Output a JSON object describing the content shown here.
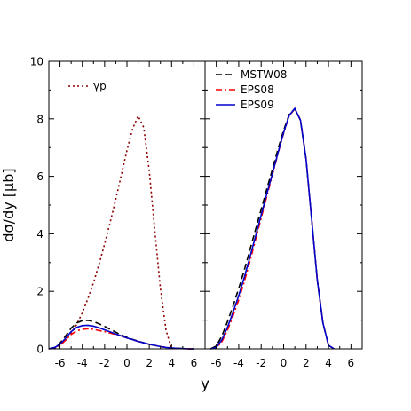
{
  "figure": {
    "ylabel": "dσ/dy [μb]",
    "xlabel": "y",
    "ylim": [
      0,
      10
    ],
    "xlim": [
      -7,
      7
    ],
    "yticks": [
      0,
      2,
      4,
      6,
      8,
      10
    ],
    "xticks": [
      -6,
      -4,
      -2,
      0,
      2,
      4,
      6
    ],
    "grid": false
  },
  "chart_data": [
    {
      "type": "line",
      "panel": "left",
      "legend_position": "top-left",
      "series": [
        {
          "name": "γp",
          "color": "#8b0000",
          "dash": "dotted",
          "in_legend": true,
          "x": [
            -6.5,
            -6,
            -5.5,
            -5,
            -4.5,
            -4,
            -3.5,
            -3,
            -2.5,
            -2,
            -1.5,
            -1,
            -0.5,
            0,
            0.5,
            1,
            1.5,
            2,
            2.5,
            3,
            3.5,
            4
          ],
          "y": [
            0.02,
            0.12,
            0.3,
            0.55,
            0.85,
            1.25,
            1.75,
            2.3,
            2.95,
            3.65,
            4.4,
            5.2,
            6.05,
            6.9,
            7.65,
            8.1,
            7.7,
            6.2,
            4.1,
            2.1,
            0.65,
            0.0
          ]
        },
        {
          "name": "MSTW08",
          "color": "#000000",
          "dash": "dashed",
          "in_legend": false,
          "x": [
            -7,
            -6.5,
            -6,
            -5.5,
            -5,
            -4.5,
            -4,
            -3.5,
            -3,
            -2.5,
            -2,
            -1.5,
            -1,
            -0.5,
            0,
            0.5,
            1,
            1.5,
            2,
            2.5,
            3,
            3.5,
            4,
            4.5,
            5,
            5.5,
            6
          ],
          "y": [
            0.0,
            0.05,
            0.2,
            0.45,
            0.72,
            0.9,
            0.98,
            0.99,
            0.95,
            0.87,
            0.78,
            0.68,
            0.58,
            0.48,
            0.4,
            0.33,
            0.27,
            0.21,
            0.16,
            0.12,
            0.08,
            0.05,
            0.03,
            0.02,
            0.01,
            0.0,
            0.0
          ]
        },
        {
          "name": "EPS08",
          "color": "#ff0000",
          "dash": "dashdot",
          "in_legend": false,
          "x": [
            -7,
            -6.5,
            -6,
            -5.5,
            -5,
            -4.5,
            -4,
            -3.5,
            -3,
            -2.5,
            -2,
            -1.5,
            -1,
            -0.5,
            0,
            0.5,
            1,
            1.5,
            2,
            2.5,
            3,
            3.5,
            4,
            4.5,
            5,
            5.5,
            6
          ],
          "y": [
            0.0,
            0.03,
            0.13,
            0.3,
            0.5,
            0.63,
            0.68,
            0.7,
            0.68,
            0.64,
            0.6,
            0.55,
            0.5,
            0.44,
            0.38,
            0.32,
            0.26,
            0.21,
            0.16,
            0.12,
            0.08,
            0.05,
            0.03,
            0.02,
            0.01,
            0.0,
            0.0
          ]
        },
        {
          "name": "EPS09",
          "color": "#0000cc",
          "dash": "solid",
          "in_legend": false,
          "x": [
            -7,
            -6.5,
            -6,
            -5.5,
            -5,
            -4.5,
            -4,
            -3.5,
            -3,
            -2.5,
            -2,
            -1.5,
            -1,
            -0.5,
            0,
            0.5,
            1,
            1.5,
            2,
            2.5,
            3,
            3.5,
            4,
            4.5,
            5,
            5.5,
            6
          ],
          "y": [
            0.0,
            0.04,
            0.16,
            0.37,
            0.6,
            0.75,
            0.81,
            0.82,
            0.79,
            0.73,
            0.66,
            0.59,
            0.52,
            0.45,
            0.38,
            0.32,
            0.26,
            0.21,
            0.16,
            0.12,
            0.08,
            0.05,
            0.03,
            0.02,
            0.01,
            0.0,
            0.0
          ]
        }
      ]
    },
    {
      "type": "line",
      "panel": "right",
      "legend_position": "top-left",
      "series": [
        {
          "name": "MSTW08",
          "color": "#000000",
          "dash": "dashed",
          "in_legend": true,
          "x": [
            -6.5,
            -6,
            -5.5,
            -5,
            -4.5,
            -4,
            -3.5,
            -3,
            -2.5,
            -2,
            -1.5,
            -1,
            -0.5,
            0,
            0.5,
            1,
            1.5,
            2,
            2.5,
            3,
            3.5,
            4,
            4.5
          ],
          "y": [
            0.0,
            0.1,
            0.45,
            0.95,
            1.5,
            2.1,
            2.75,
            3.45,
            4.15,
            4.85,
            5.55,
            6.25,
            6.95,
            7.6,
            8.15,
            8.35,
            7.95,
            6.6,
            4.5,
            2.4,
            0.9,
            0.12,
            0.0
          ]
        },
        {
          "name": "EPS08",
          "color": "#ff0000",
          "dash": "dashdot",
          "in_legend": true,
          "x": [
            -6.5,
            -6,
            -5.5,
            -5,
            -4.5,
            -4,
            -3.5,
            -3,
            -2.5,
            -2,
            -1.5,
            -1,
            -0.5,
            0,
            0.5,
            1,
            1.5,
            2,
            2.5,
            3,
            3.5,
            4,
            4.5
          ],
          "y": [
            0.0,
            0.03,
            0.25,
            0.65,
            1.15,
            1.7,
            2.35,
            3.05,
            3.8,
            4.55,
            5.3,
            6.05,
            6.8,
            7.5,
            8.1,
            8.35,
            7.95,
            6.6,
            4.5,
            2.4,
            0.9,
            0.12,
            0.0
          ]
        },
        {
          "name": "EPS09",
          "color": "#0000cc",
          "dash": "solid",
          "in_legend": true,
          "x": [
            -6.5,
            -6,
            -5.5,
            -5,
            -4.5,
            -4,
            -3.5,
            -3,
            -2.5,
            -2,
            -1.5,
            -1,
            -0.5,
            0,
            0.5,
            1,
            1.5,
            2,
            2.5,
            3,
            3.5,
            4,
            4.5
          ],
          "y": [
            0.0,
            0.05,
            0.32,
            0.75,
            1.28,
            1.85,
            2.5,
            3.2,
            3.92,
            4.65,
            5.38,
            6.1,
            6.82,
            7.52,
            8.12,
            8.36,
            7.95,
            6.6,
            4.5,
            2.4,
            0.9,
            0.12,
            0.0
          ]
        }
      ]
    }
  ]
}
